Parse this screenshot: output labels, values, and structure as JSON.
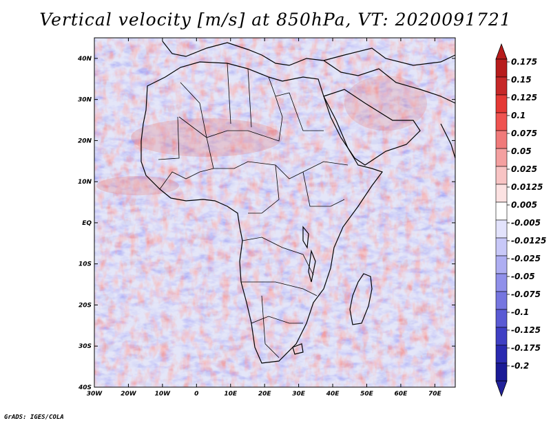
{
  "title": "Vertical velocity [m/s] at 850hPa, VT: 2020091721",
  "credit": "GrADS: IGES/COLA",
  "map": {
    "lon_range": [
      -30,
      76
    ],
    "lat_range": [
      -40,
      45
    ],
    "lat_labels": [
      "40N",
      "30N",
      "20N",
      "10N",
      "EQ",
      "10S",
      "20S",
      "30S",
      "40S"
    ],
    "lon_labels": [
      "30W",
      "20W",
      "10W",
      "0",
      "10E",
      "20E",
      "30E",
      "40E",
      "50E",
      "60E",
      "70E"
    ]
  },
  "legend": {
    "labels": [
      "0.175",
      "0.15",
      "0.125",
      "0.1",
      "0.075",
      "0.05",
      "0.025",
      "0.0125",
      "0.005",
      "-0.005",
      "-0.0125",
      "-0.025",
      "-0.05",
      "-0.075",
      "-0.1",
      "-0.125",
      "-0.175",
      "-0.2"
    ],
    "colors": [
      "#b71c1c",
      "#c62828",
      "#e53935",
      "#ef5350",
      "#f07a7a",
      "#f4a0a0",
      "#f8c4c4",
      "#fce2e2",
      "#ffffff",
      "#e3e3fc",
      "#c8c8f8",
      "#aeaef2",
      "#9090ea",
      "#7676e0",
      "#5a5ad4",
      "#3f3fc4",
      "#2a2ab0",
      "#1a1a96"
    ],
    "top_arrow_color": "#b71c1c",
    "bottom_arrow_color": "#22229a"
  },
  "colors": {
    "background": "#d9dcf6",
    "land_outline": "#000000"
  }
}
